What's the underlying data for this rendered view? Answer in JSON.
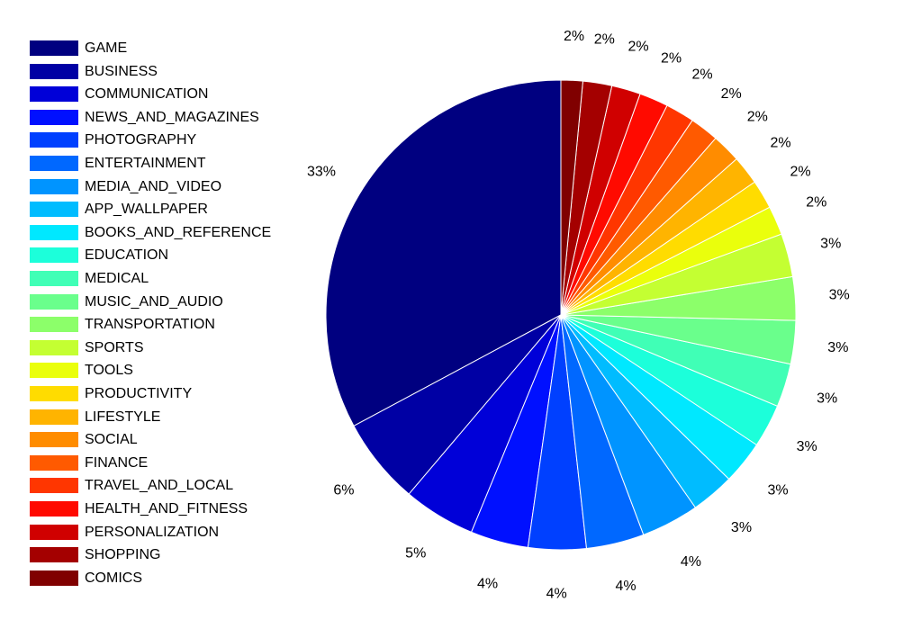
{
  "chart_data": {
    "type": "pie",
    "legend_position": "left",
    "start": "top",
    "direction": "counterclockwise",
    "slices": [
      {
        "label": "GAME",
        "value": 33,
        "pct_label": "33%",
        "color": "#000080"
      },
      {
        "label": "BUSINESS",
        "value": 6,
        "pct_label": "6%",
        "color": "#0000a4"
      },
      {
        "label": "COMMUNICATION",
        "value": 5,
        "pct_label": "5%",
        "color": "#0000d8"
      },
      {
        "label": "NEWS_AND_MAGAZINES",
        "value": 4,
        "pct_label": "4%",
        "color": "#0010ff"
      },
      {
        "label": "PHOTOGRAPHY",
        "value": 4,
        "pct_label": "4%",
        "color": "#0040ff"
      },
      {
        "label": "ENTERTAINMENT",
        "value": 4,
        "pct_label": "4%",
        "color": "#0068ff"
      },
      {
        "label": "MEDIA_AND_VIDEO",
        "value": 4,
        "pct_label": "4%",
        "color": "#0094ff"
      },
      {
        "label": "APP_WALLPAPER",
        "value": 3,
        "pct_label": "3%",
        "color": "#00bcff"
      },
      {
        "label": "BOOKS_AND_REFERENCE",
        "value": 3,
        "pct_label": "3%",
        "color": "#00e8ff"
      },
      {
        "label": "EDUCATION",
        "value": 3,
        "pct_label": "3%",
        "color": "#1cffda"
      },
      {
        "label": "MEDICAL",
        "value": 3,
        "pct_label": "3%",
        "color": "#40ffb6"
      },
      {
        "label": "MUSIC_AND_AUDIO",
        "value": 3,
        "pct_label": "3%",
        "color": "#6aff8c"
      },
      {
        "label": "TRANSPORTATION",
        "value": 3,
        "pct_label": "3%",
        "color": "#8cff6a"
      },
      {
        "label": "SPORTS",
        "value": 3,
        "pct_label": "3%",
        "color": "#c4ff32"
      },
      {
        "label": "TOOLS",
        "value": 2,
        "pct_label": "2%",
        "color": "#eaff0c"
      },
      {
        "label": "PRODUCTIVITY",
        "value": 2,
        "pct_label": "2%",
        "color": "#ffdc00"
      },
      {
        "label": "LIFESTYLE",
        "value": 2,
        "pct_label": "2%",
        "color": "#ffb400"
      },
      {
        "label": "SOCIAL",
        "value": 2,
        "pct_label": "2%",
        "color": "#ff8c00"
      },
      {
        "label": "FINANCE",
        "value": 2,
        "pct_label": "2%",
        "color": "#ff5a00"
      },
      {
        "label": "TRAVEL_AND_LOCAL",
        "value": 2,
        "pct_label": "2%",
        "color": "#ff3600"
      },
      {
        "label": "HEALTH_AND_FITNESS",
        "value": 2,
        "pct_label": "2%",
        "color": "#ff0a00"
      },
      {
        "label": "PERSONALIZATION",
        "value": 2,
        "pct_label": "2%",
        "color": "#d00000"
      },
      {
        "label": "SHOPPING",
        "value": 2,
        "pct_label": "2%",
        "color": "#a40000"
      },
      {
        "label": "COMICS",
        "value": 1.5,
        "pct_label": "2%",
        "color": "#800000"
      }
    ]
  }
}
